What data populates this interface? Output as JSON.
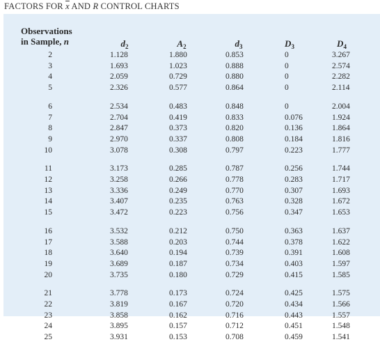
{
  "title": {
    "prefix": "FACTORS FOR ",
    "xbar": "x",
    "middle": " AND ",
    "r": "R",
    "suffix": " CONTROL CHARTS"
  },
  "header": {
    "obs_line1": "Observations",
    "obs_line2_prefix": "in Sample, ",
    "obs_line2_n": "n",
    "columns": [
      {
        "key": "d2",
        "symbol": "d",
        "sub": "2"
      },
      {
        "key": "A2",
        "symbol": "A",
        "sub": "2"
      },
      {
        "key": "d3",
        "symbol": "d",
        "sub": "3"
      },
      {
        "key": "D3",
        "symbol": "D",
        "sub": "3"
      },
      {
        "key": "D4",
        "symbol": "D",
        "sub": "4"
      }
    ]
  },
  "rows": [
    {
      "n": "2",
      "d2": "1.128",
      "A2": "1.880",
      "d3": "0.853",
      "D3": "0",
      "D4": "3.267"
    },
    {
      "n": "3",
      "d2": "1.693",
      "A2": "1.023",
      "d3": "0.888",
      "D3": "0",
      "D4": "2.574"
    },
    {
      "n": "4",
      "d2": "2.059",
      "A2": "0.729",
      "d3": "0.880",
      "D3": "0",
      "D4": "2.282"
    },
    {
      "n": "5",
      "d2": "2.326",
      "A2": "0.577",
      "d3": "0.864",
      "D3": "0",
      "D4": "2.114"
    },
    {
      "n": "6",
      "d2": "2.534",
      "A2": "0.483",
      "d3": "0.848",
      "D3": "0",
      "D4": "2.004"
    },
    {
      "n": "7",
      "d2": "2.704",
      "A2": "0.419",
      "d3": "0.833",
      "D3": "0.076",
      "D4": "1.924"
    },
    {
      "n": "8",
      "d2": "2.847",
      "A2": "0.373",
      "d3": "0.820",
      "D3": "0.136",
      "D4": "1.864"
    },
    {
      "n": "9",
      "d2": "2.970",
      "A2": "0.337",
      "d3": "0.808",
      "D3": "0.184",
      "D4": "1.816"
    },
    {
      "n": "10",
      "d2": "3.078",
      "A2": "0.308",
      "d3": "0.797",
      "D3": "0.223",
      "D4": "1.777"
    },
    {
      "n": "11",
      "d2": "3.173",
      "A2": "0.285",
      "d3": "0.787",
      "D3": "0.256",
      "D4": "1.744"
    },
    {
      "n": "12",
      "d2": "3.258",
      "A2": "0.266",
      "d3": "0.778",
      "D3": "0.283",
      "D4": "1.717"
    },
    {
      "n": "13",
      "d2": "3.336",
      "A2": "0.249",
      "d3": "0.770",
      "D3": "0.307",
      "D4": "1.693"
    },
    {
      "n": "14",
      "d2": "3.407",
      "A2": "0.235",
      "d3": "0.763",
      "D3": "0.328",
      "D4": "1.672"
    },
    {
      "n": "15",
      "d2": "3.472",
      "A2": "0.223",
      "d3": "0.756",
      "D3": "0.347",
      "D4": "1.653"
    },
    {
      "n": "16",
      "d2": "3.532",
      "A2": "0.212",
      "d3": "0.750",
      "D3": "0.363",
      "D4": "1.637"
    },
    {
      "n": "17",
      "d2": "3.588",
      "A2": "0.203",
      "d3": "0.744",
      "D3": "0.378",
      "D4": "1.622"
    },
    {
      "n": "18",
      "d2": "3.640",
      "A2": "0.194",
      "d3": "0.739",
      "D3": "0.391",
      "D4": "1.608"
    },
    {
      "n": "19",
      "d2": "3.689",
      "A2": "0.187",
      "d3": "0.734",
      "D3": "0.403",
      "D4": "1.597"
    },
    {
      "n": "20",
      "d2": "3.735",
      "A2": "0.180",
      "d3": "0.729",
      "D3": "0.415",
      "D4": "1.585"
    },
    {
      "n": "21",
      "d2": "3.778",
      "A2": "0.173",
      "d3": "0.724",
      "D3": "0.425",
      "D4": "1.575"
    },
    {
      "n": "22",
      "d2": "3.819",
      "A2": "0.167",
      "d3": "0.720",
      "D3": "0.434",
      "D4": "1.566"
    },
    {
      "n": "23",
      "d2": "3.858",
      "A2": "0.162",
      "d3": "0.716",
      "D3": "0.443",
      "D4": "1.557"
    },
    {
      "n": "24",
      "d2": "3.895",
      "A2": "0.157",
      "d3": "0.712",
      "D3": "0.451",
      "D4": "1.548"
    },
    {
      "n": "25",
      "d2": "3.931",
      "A2": "0.153",
      "d3": "0.708",
      "D3": "0.459",
      "D4": "1.541"
    }
  ],
  "colors": {
    "panel_background": "#e3eef8",
    "text": "#2b2b2b"
  }
}
